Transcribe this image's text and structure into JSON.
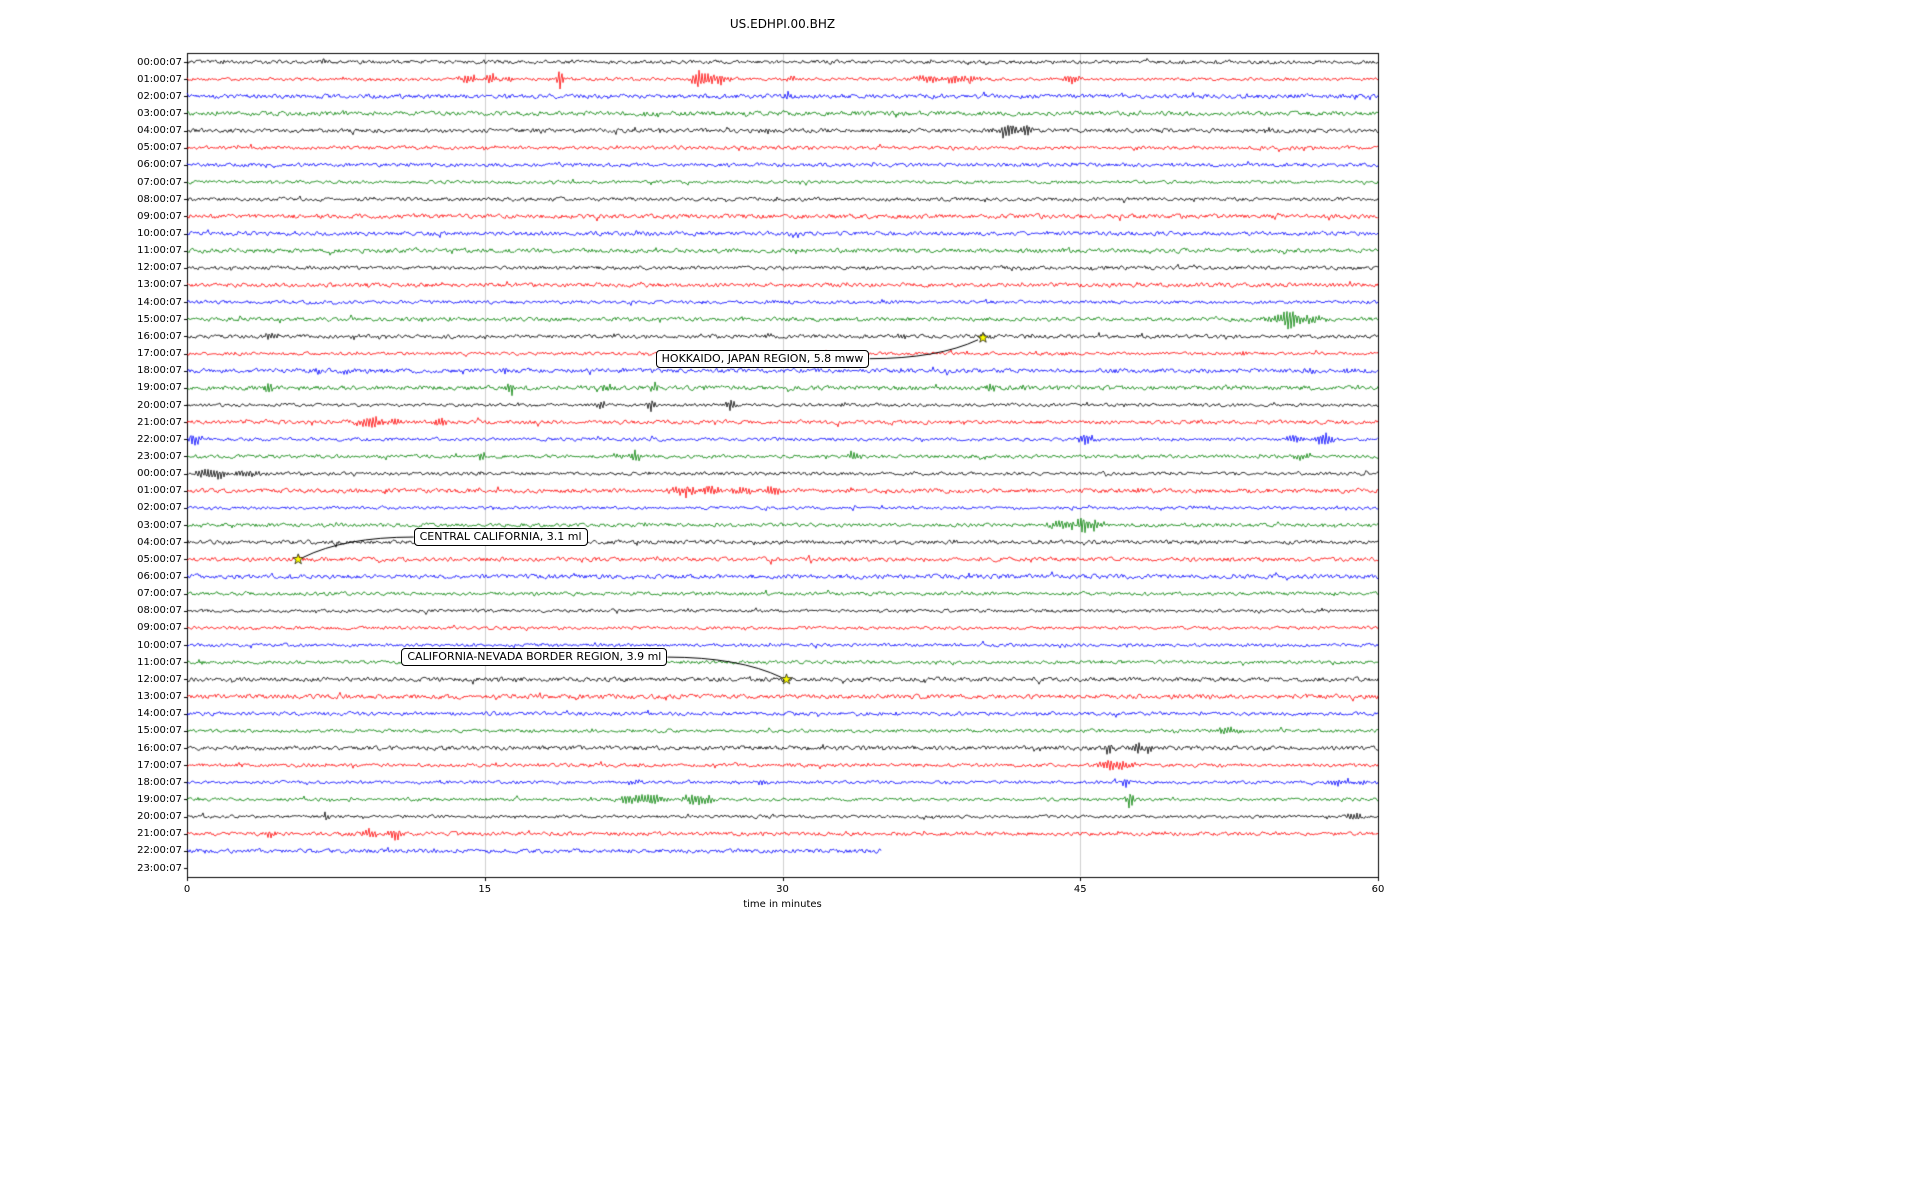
{
  "chart_data": {
    "type": "line",
    "subtype": "helicorder-dayplot",
    "title": "US.EDHPI.00.BHZ",
    "xlabel": "time in minutes",
    "xlim": [
      0,
      60
    ],
    "xticks": [
      0,
      15,
      30,
      45,
      60
    ],
    "xtick_labels": [
      "0",
      "15",
      "30",
      "45",
      "60"
    ],
    "grid": {
      "vertical_minutes": [
        15,
        30,
        45
      ],
      "color": "#c3c3c3"
    },
    "trace_colors": [
      "#000000",
      "#ff0000",
      "#0000ff",
      "#008000"
    ],
    "star_color": "#ffff00",
    "rows": [
      {
        "label": "00:00:07",
        "c": 0,
        "end": 60,
        "ev": [
          [
            6.9,
            4,
            0.12
          ]
        ]
      },
      {
        "label": "01:00:07",
        "c": 1,
        "end": 60,
        "ev": [
          [
            14.2,
            5,
            0.4
          ],
          [
            15.3,
            6,
            0.25
          ],
          [
            16.2,
            4,
            0.2
          ],
          [
            18.8,
            11,
            0.12
          ],
          [
            25.8,
            9,
            0.3
          ],
          [
            26.6,
            5,
            0.5
          ],
          [
            30.5,
            3,
            0.3
          ],
          [
            37.3,
            4,
            0.5
          ],
          [
            38.6,
            5,
            0.4
          ],
          [
            39.6,
            3,
            0.3
          ],
          [
            44.6,
            5,
            0.25
          ]
        ]
      },
      {
        "label": "02:00:07",
        "c": 2,
        "end": 60,
        "ev": [
          [
            30.3,
            5,
            0.13
          ]
        ]
      },
      {
        "label": "03:00:07",
        "c": 3,
        "end": 60,
        "ev": []
      },
      {
        "label": "04:00:07",
        "c": 0,
        "end": 60,
        "ev": [
          [
            29.2,
            2.5,
            0.3
          ],
          [
            41.5,
            8,
            0.5
          ],
          [
            42.2,
            10,
            0.25
          ]
        ]
      },
      {
        "label": "05:00:07",
        "c": 1,
        "end": 60,
        "ev": []
      },
      {
        "label": "06:00:07",
        "c": 2,
        "end": 60,
        "ev": []
      },
      {
        "label": "07:00:07",
        "c": 3,
        "end": 60,
        "ev": []
      },
      {
        "label": "08:00:07",
        "c": 0,
        "end": 60,
        "ev": []
      },
      {
        "label": "09:00:07",
        "c": 1,
        "end": 60,
        "ev": []
      },
      {
        "label": "10:00:07",
        "c": 2,
        "end": 60,
        "ev": []
      },
      {
        "label": "11:00:07",
        "c": 3,
        "end": 60,
        "ev": []
      },
      {
        "label": "12:00:07",
        "c": 0,
        "end": 60,
        "ev": []
      },
      {
        "label": "13:00:07",
        "c": 1,
        "end": 60,
        "ev": []
      },
      {
        "label": "14:00:07",
        "c": 2,
        "end": 60,
        "ev": []
      },
      {
        "label": "15:00:07",
        "c": 3,
        "end": 60,
        "ev": [
          [
            54.8,
            4,
            0.6
          ],
          [
            55.6,
            9,
            0.3
          ],
          [
            56.6,
            4,
            0.5
          ]
        ]
      },
      {
        "label": "16:00:07",
        "c": 0,
        "end": 60,
        "ev": [
          [
            4.2,
            4,
            0.25
          ],
          [
            8.5,
            2.5,
            0.2
          ],
          [
            29.3,
            3,
            0.13
          ],
          [
            36.0,
            4,
            0.13
          ],
          [
            40.1,
            2,
            0.2
          ]
        ]
      },
      {
        "label": "17:00:07",
        "c": 1,
        "end": 60,
        "ev": [
          [
            44.3,
            3,
            0.2
          ],
          [
            53.2,
            4,
            0.13
          ]
        ]
      },
      {
        "label": "18:00:07",
        "c": 2,
        "end": 60,
        "ev": [
          [
            6.6,
            3,
            0.13
          ],
          [
            8.0,
            4,
            0.13
          ],
          [
            16.0,
            3,
            0.13
          ],
          [
            56.6,
            4,
            0.2
          ],
          [
            58.5,
            3,
            0.2
          ]
        ]
      },
      {
        "label": "19:00:07",
        "c": 3,
        "end": 60,
        "ev": [
          [
            4.1,
            6,
            0.18
          ],
          [
            16.3,
            7,
            0.18
          ],
          [
            21.1,
            4,
            0.18
          ],
          [
            23.6,
            5,
            0.18
          ],
          [
            40.5,
            5,
            0.13
          ]
        ]
      },
      {
        "label": "20:00:07",
        "c": 0,
        "end": 60,
        "ev": [
          [
            20.9,
            4,
            0.2
          ],
          [
            23.4,
            6,
            0.18
          ],
          [
            27.4,
            6,
            0.18
          ],
          [
            33.0,
            3,
            0.13
          ]
        ]
      },
      {
        "label": "21:00:07",
        "c": 1,
        "end": 60,
        "ev": [
          [
            9.3,
            6,
            0.5
          ],
          [
            10.4,
            5,
            0.3
          ],
          [
            12.8,
            5,
            0.22
          ]
        ]
      },
      {
        "label": "22:00:07",
        "c": 2,
        "end": 60,
        "ev": [
          [
            0.4,
            6,
            0.3
          ],
          [
            45.3,
            6,
            0.3
          ],
          [
            55.8,
            4,
            0.3
          ],
          [
            57.3,
            8,
            0.3
          ]
        ]
      },
      {
        "label": "23:00:07",
        "c": 3,
        "end": 60,
        "ev": [
          [
            14.9,
            5,
            0.13
          ],
          [
            21.8,
            3,
            0.3
          ],
          [
            22.6,
            7,
            0.18
          ],
          [
            33.6,
            6,
            0.22
          ],
          [
            56.2,
            3,
            0.4
          ]
        ]
      },
      {
        "label": "00:00:07",
        "c": 0,
        "end": 60,
        "ev": [
          [
            0.8,
            4,
            0.3
          ],
          [
            1.6,
            5,
            0.5
          ],
          [
            2.9,
            4,
            0.5
          ]
        ]
      },
      {
        "label": "01:00:07",
        "c": 1,
        "end": 60,
        "ev": [
          [
            25.2,
            6,
            0.5
          ],
          [
            26.3,
            6,
            0.4
          ],
          [
            28.0,
            5,
            0.4
          ],
          [
            29.5,
            8,
            0.2
          ]
        ]
      },
      {
        "label": "02:00:07",
        "c": 2,
        "end": 60,
        "ev": []
      },
      {
        "label": "03:00:07",
        "c": 3,
        "end": 60,
        "ev": [
          [
            44.2,
            6,
            0.6
          ],
          [
            45.1,
            13,
            0.18
          ],
          [
            45.7,
            6,
            0.3
          ]
        ]
      },
      {
        "label": "04:00:07",
        "c": 0,
        "end": 60,
        "ev": []
      },
      {
        "label": "05:00:07",
        "c": 1,
        "end": 60,
        "ev": [
          [
            5.6,
            2,
            0.2
          ]
        ]
      },
      {
        "label": "06:00:07",
        "c": 2,
        "end": 60,
        "ev": []
      },
      {
        "label": "07:00:07",
        "c": 3,
        "end": 60,
        "ev": []
      },
      {
        "label": "08:00:07",
        "c": 0,
        "end": 60,
        "ev": []
      },
      {
        "label": "09:00:07",
        "c": 1,
        "end": 60,
        "ev": []
      },
      {
        "label": "10:00:07",
        "c": 2,
        "end": 60,
        "ev": []
      },
      {
        "label": "11:00:07",
        "c": 3,
        "end": 60,
        "ev": []
      },
      {
        "label": "12:00:07",
        "c": 0,
        "end": 60,
        "ev": [
          [
            30.2,
            1.5,
            0.2
          ]
        ]
      },
      {
        "label": "13:00:07",
        "c": 1,
        "end": 60,
        "ev": []
      },
      {
        "label": "14:00:07",
        "c": 2,
        "end": 60,
        "ev": []
      },
      {
        "label": "15:00:07",
        "c": 3,
        "end": 60,
        "ev": [
          [
            52.4,
            3.5,
            0.5
          ]
        ]
      },
      {
        "label": "16:00:07",
        "c": 0,
        "end": 60,
        "ev": [
          [
            46.4,
            5,
            0.25
          ],
          [
            47.9,
            8,
            0.25
          ],
          [
            48.4,
            5,
            0.2
          ]
        ]
      },
      {
        "label": "17:00:07",
        "c": 1,
        "end": 60,
        "ev": [
          [
            46.4,
            6,
            0.3
          ],
          [
            47.2,
            5,
            0.3
          ]
        ]
      },
      {
        "label": "18:00:07",
        "c": 2,
        "end": 60,
        "ev": [
          [
            22.5,
            3,
            0.3
          ],
          [
            29.0,
            3,
            0.2
          ],
          [
            47.3,
            6,
            0.13
          ],
          [
            58.0,
            4,
            0.3
          ],
          [
            59.3,
            3,
            0.2
          ]
        ]
      },
      {
        "label": "19:00:07",
        "c": 3,
        "end": 60,
        "ev": [
          [
            22.3,
            5,
            0.5
          ],
          [
            23.5,
            5,
            0.4
          ],
          [
            25.5,
            6,
            0.4
          ],
          [
            26.3,
            4,
            0.3
          ],
          [
            47.5,
            11,
            0.13
          ]
        ]
      },
      {
        "label": "20:00:07",
        "c": 0,
        "end": 60,
        "ev": [
          [
            7.0,
            5,
            0.13
          ],
          [
            58.6,
            3,
            0.2
          ],
          [
            59.0,
            4,
            0.15
          ]
        ]
      },
      {
        "label": "21:00:07",
        "c": 1,
        "end": 60,
        "ev": [
          [
            4.2,
            4,
            0.2
          ],
          [
            9.2,
            6,
            0.3
          ],
          [
            10.5,
            6,
            0.25
          ]
        ]
      },
      {
        "label": "22:00:07",
        "c": 2,
        "end": 35,
        "ev": []
      },
      {
        "label": "23:00:07",
        "c": 3,
        "end": 0,
        "ev": []
      }
    ],
    "annotations": [
      {
        "text": "HOKKAIDO, JAPAN REGION, 5.8 mww",
        "star": {
          "minute": 40.1,
          "row": 16.08
        },
        "label": {
          "minute": 29.0,
          "row": 17.3
        },
        "connect": "right"
      },
      {
        "text": "CENTRAL CALIFORNIA, 3.1 ml",
        "star": {
          "minute": 5.6,
          "row": 29.0
        },
        "label": {
          "minute": 15.8,
          "row": 27.7
        },
        "connect": "left"
      },
      {
        "text": "CALIFORNIA-NEVADA BORDER REGION, 3.9 ml",
        "star": {
          "minute": 30.2,
          "row": 36.0
        },
        "label": {
          "minute": 17.5,
          "row": 34.7
        },
        "connect": "right"
      }
    ]
  }
}
